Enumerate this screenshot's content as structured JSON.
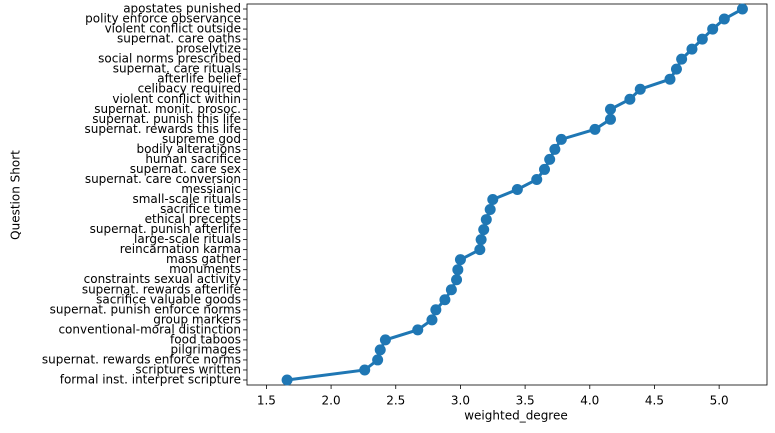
{
  "chart_data": {
    "type": "point",
    "orientation": "horizontal",
    "xlabel": "weighted_degree",
    "ylabel": "Question Short",
    "color": "#1f77b4",
    "categories": [
      "apostates punished",
      "polity enforce observance",
      "violent conflict outside",
      "supernat. care oaths",
      "proselytize",
      "social norms prescribed",
      "supernat. care rituals",
      "afterlife belief",
      "celibacy required",
      "violent conflict within",
      "supernat. monit. prosoc.",
      "supernat. punish this life",
      "supernat. rewards this life",
      "supreme god",
      "bodily alterations",
      "human sacrifice",
      "supernat. care sex",
      "supernat. care conversion",
      "messianic",
      "small-scale rituals",
      "sacrifice time",
      "ethical precepts",
      "supernat. punish afterlife",
      "large-scale rituals",
      "reincarnation karma",
      "mass gather",
      "monuments",
      "constraints sexual activity",
      "supernat. rewards afterlife",
      "sacrifice valuable goods",
      "supernat. punish enforce norms",
      "group markers",
      "conventional-moral distinction",
      "food taboos",
      "pilgrimages",
      "supernat. rewards enforce norms",
      "scriptures written",
      "formal inst. interpret scripture"
    ],
    "values": [
      5.18,
      5.04,
      4.95,
      4.87,
      4.79,
      4.71,
      4.67,
      4.62,
      4.39,
      4.31,
      4.16,
      4.16,
      4.04,
      3.78,
      3.73,
      3.69,
      3.65,
      3.59,
      3.44,
      3.25,
      3.23,
      3.2,
      3.18,
      3.16,
      3.15,
      3.0,
      2.98,
      2.97,
      2.93,
      2.88,
      2.81,
      2.78,
      2.67,
      2.42,
      2.38,
      2.36,
      2.26,
      1.66
    ],
    "xlim": [
      1.35,
      5.37
    ],
    "xticks": [
      1.5,
      {
        "value": 2,
        "label": "2.0"
      },
      2.5,
      {
        "value": 3,
        "label": "3.0"
      },
      3.5,
      {
        "value": 4,
        "label": "4.0"
      },
      4.5,
      {
        "value": 5,
        "label": "5.0"
      }
    ]
  }
}
